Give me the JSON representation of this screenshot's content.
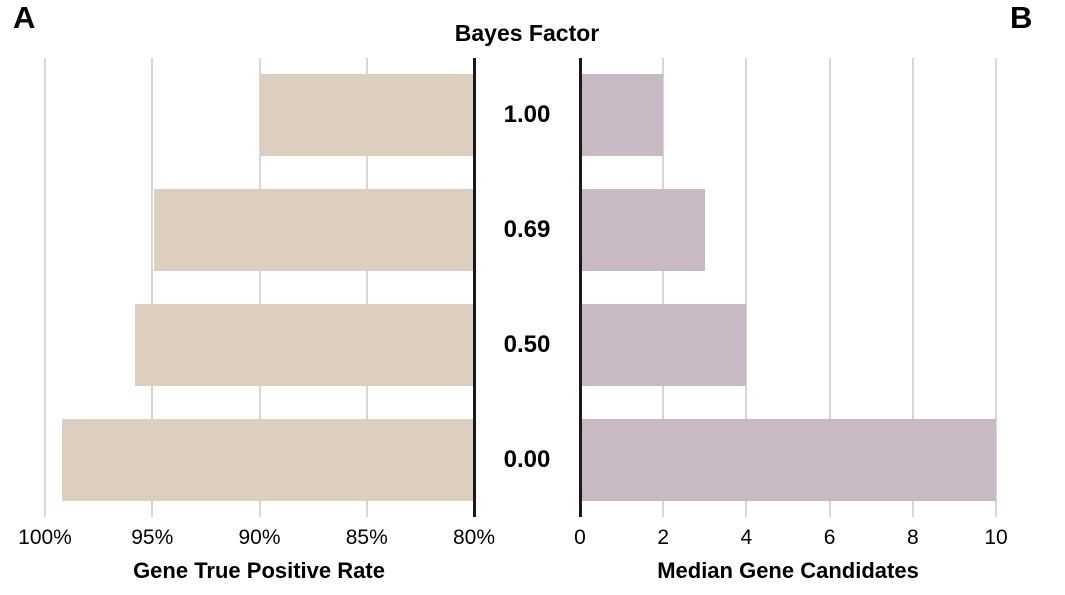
{
  "figure": {
    "panel_a_label": "A",
    "panel_b_label": "B",
    "center_header": "Bayes Factor"
  },
  "colors": {
    "panel_a_bar": "#dccfc0",
    "panel_b_bar": "#c9b9c5",
    "gridline": "#d7d7d7",
    "axis_line": "#1a1a1a",
    "text": "#000000"
  },
  "category_axis": {
    "title": "Bayes Factor",
    "labels": [
      "1.00",
      "0.69",
      "0.50",
      "0.00"
    ]
  },
  "chart_data": [
    {
      "panel": "A",
      "type": "bar",
      "orientation": "horizontal",
      "xlabel": "Gene True Positive Rate",
      "categories": [
        "1.00",
        "0.69",
        "0.50",
        "0.00"
      ],
      "values": [
        90.0,
        94.9,
        95.8,
        99.2
      ],
      "unit": "%",
      "xlim": [
        100,
        80
      ],
      "axis_reversed": true,
      "x_tick_values": [
        100,
        95,
        90,
        85,
        80
      ],
      "x_ticks": [
        "100%",
        "95%",
        "90%",
        "85%",
        "80%"
      ],
      "grid": true,
      "bar_anchor": "right"
    },
    {
      "panel": "B",
      "type": "bar",
      "orientation": "horizontal",
      "xlabel": "Median Gene Candidates",
      "categories": [
        "1.00",
        "0.69",
        "0.50",
        "0.00"
      ],
      "values": [
        2,
        3,
        4,
        10
      ],
      "xlim": [
        0,
        10
      ],
      "axis_reversed": false,
      "x_tick_values": [
        0,
        2,
        4,
        6,
        8,
        10
      ],
      "x_ticks": [
        "0",
        "2",
        "4",
        "6",
        "8",
        "10"
      ],
      "grid": true,
      "bar_anchor": "left"
    }
  ]
}
